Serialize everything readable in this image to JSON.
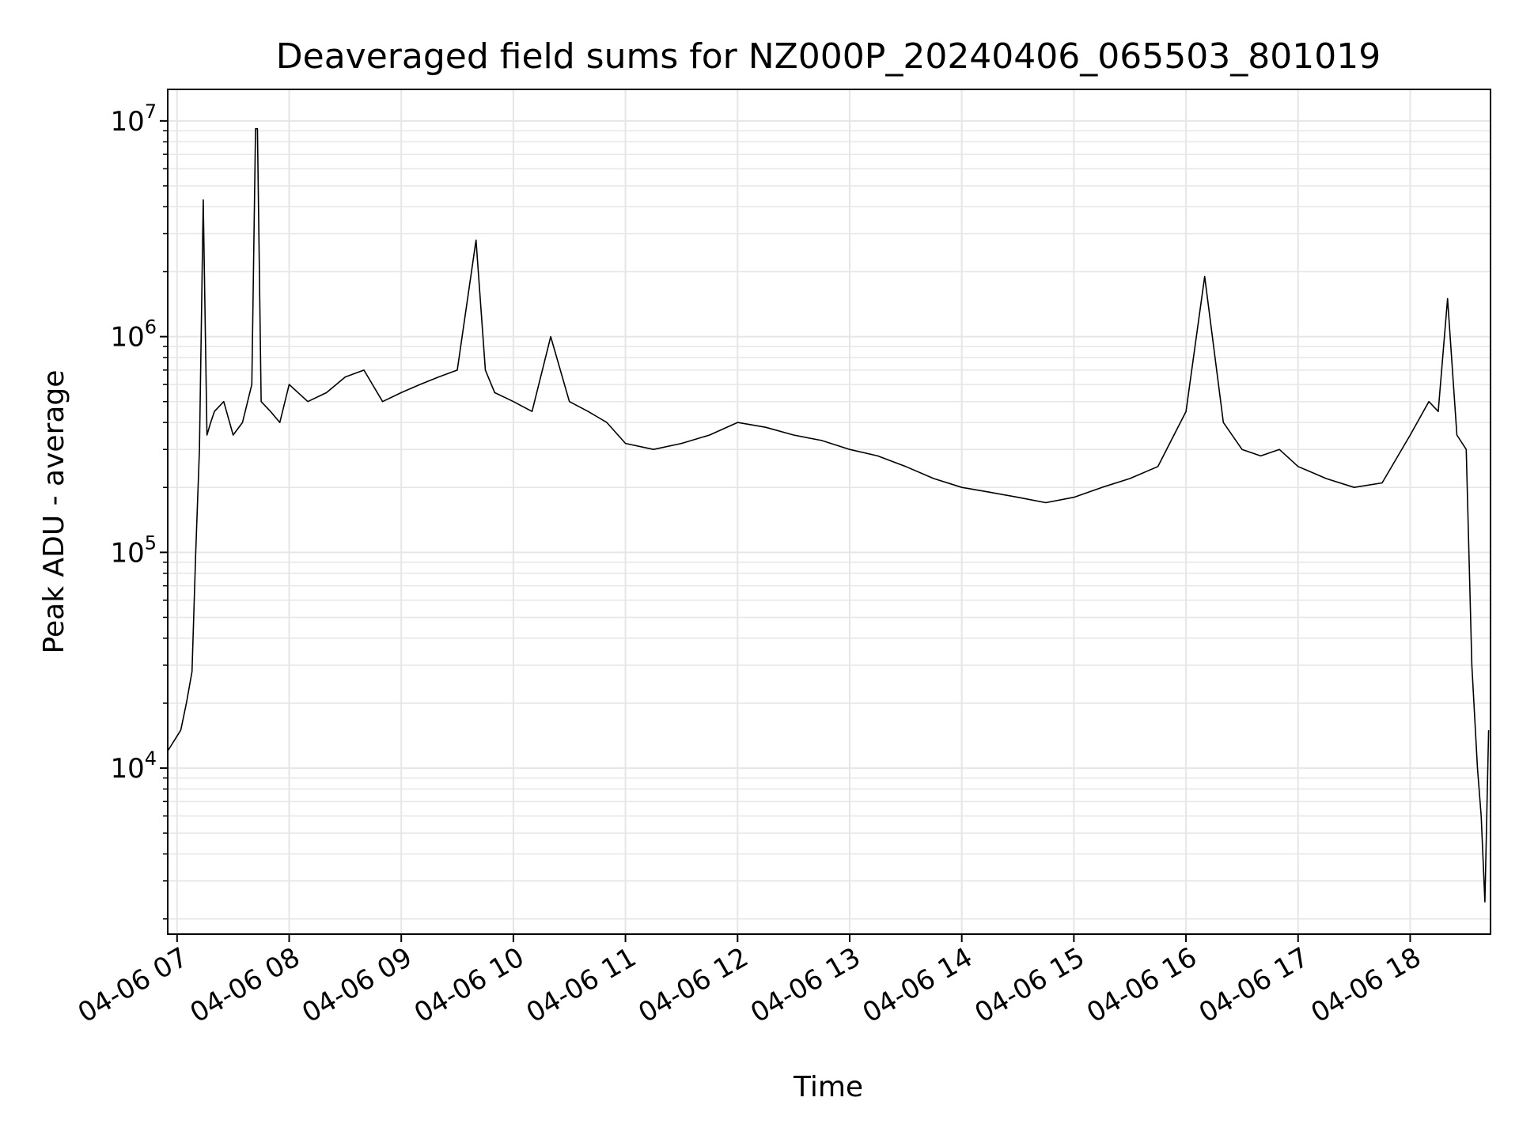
{
  "chart_data": {
    "type": "line",
    "title": "Deaveraged field sums for NZ000P_20240406_065503_801019",
    "xlabel": "Time",
    "ylabel": "Peak ADU - average",
    "yscale": "log",
    "ylim": [
      1700,
      14000000
    ],
    "xlim": [
      "2024-04-06T06:55:00",
      "2024-04-06T18:43:00"
    ],
    "grid": true,
    "line_color": "#000000",
    "grid_color": "#e6e6e6",
    "x_ticks": [
      {
        "value": "2024-04-06T07:00",
        "label": "04-06 07"
      },
      {
        "value": "2024-04-06T08:00",
        "label": "04-06 08"
      },
      {
        "value": "2024-04-06T09:00",
        "label": "04-06 09"
      },
      {
        "value": "2024-04-06T10:00",
        "label": "04-06 10"
      },
      {
        "value": "2024-04-06T11:00",
        "label": "04-06 11"
      },
      {
        "value": "2024-04-06T12:00",
        "label": "04-06 12"
      },
      {
        "value": "2024-04-06T13:00",
        "label": "04-06 13"
      },
      {
        "value": "2024-04-06T14:00",
        "label": "04-06 14"
      },
      {
        "value": "2024-04-06T15:00",
        "label": "04-06 15"
      },
      {
        "value": "2024-04-06T16:00",
        "label": "04-06 16"
      },
      {
        "value": "2024-04-06T17:00",
        "label": "04-06 17"
      },
      {
        "value": "2024-04-06T18:00",
        "label": "04-06 18"
      }
    ],
    "y_ticks": [
      {
        "value": 10000,
        "base": "10",
        "exp": "4"
      },
      {
        "value": 100000,
        "base": "10",
        "exp": "5"
      },
      {
        "value": 1000000,
        "base": "10",
        "exp": "6"
      },
      {
        "value": 10000000,
        "base": "10",
        "exp": "7"
      }
    ],
    "series": [
      {
        "x": [
          "06:55",
          "07:02",
          "07:05",
          "07:08",
          "07:10",
          "07:12",
          "07:14",
          "07:16",
          "07:18",
          "07:20",
          "07:25",
          "07:30",
          "07:35",
          "07:40",
          "07:42",
          "07:43",
          "07:45",
          "07:50",
          "07:55",
          "08:00",
          "08:10",
          "08:20",
          "08:30",
          "08:40",
          "08:50",
          "09:00",
          "09:10",
          "09:20",
          "09:30",
          "09:40",
          "09:45",
          "09:50",
          "10:00",
          "10:10",
          "10:20",
          "10:30",
          "10:40",
          "10:50",
          "11:00",
          "11:15",
          "11:30",
          "11:45",
          "12:00",
          "12:15",
          "12:30",
          "12:45",
          "13:00",
          "13:15",
          "13:30",
          "13:45",
          "14:00",
          "14:15",
          "14:30",
          "14:45",
          "15:00",
          "15:15",
          "15:30",
          "15:45",
          "16:00",
          "16:10",
          "16:20",
          "16:30",
          "16:40",
          "16:50",
          "17:00",
          "17:15",
          "17:30",
          "17:45",
          "18:00",
          "18:10",
          "18:15",
          "18:20",
          "18:25",
          "18:30",
          "18:33",
          "18:36",
          "18:38",
          "18:40",
          "18:42"
        ],
        "y": [
          12000,
          15000,
          20000,
          28000,
          100000,
          300000,
          4300000,
          350000,
          400000,
          450000,
          500000,
          350000,
          400000,
          600000,
          9200000,
          9200000,
          500000,
          450000,
          400000,
          600000,
          500000,
          550000,
          650000,
          700000,
          500000,
          550000,
          600000,
          650000,
          700000,
          2800000,
          700000,
          550000,
          500000,
          450000,
          1000000,
          500000,
          450000,
          400000,
          320000,
          300000,
          320000,
          350000,
          400000,
          380000,
          350000,
          330000,
          300000,
          280000,
          250000,
          220000,
          200000,
          190000,
          180000,
          170000,
          180000,
          200000,
          220000,
          250000,
          450000,
          1900000,
          400000,
          300000,
          280000,
          300000,
          250000,
          220000,
          200000,
          210000,
          350000,
          500000,
          450000,
          1500000,
          350000,
          300000,
          30000,
          10000,
          6000,
          2400,
          15000
        ]
      }
    ]
  }
}
